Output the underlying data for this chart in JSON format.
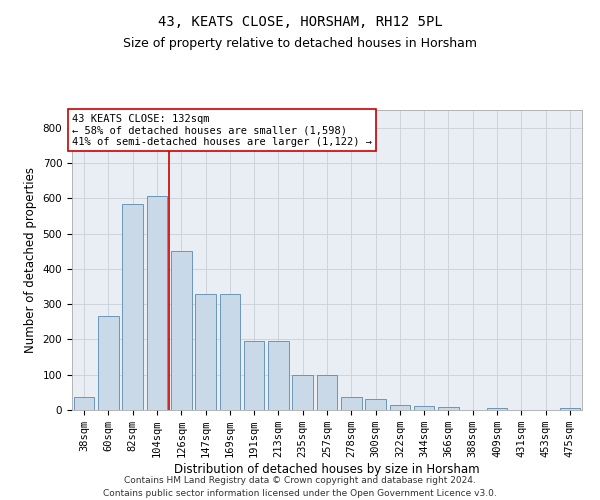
{
  "title": "43, KEATS CLOSE, HORSHAM, RH12 5PL",
  "subtitle": "Size of property relative to detached houses in Horsham",
  "xlabel": "Distribution of detached houses by size in Horsham",
  "ylabel": "Number of detached properties",
  "categories": [
    "38sqm",
    "60sqm",
    "82sqm",
    "104sqm",
    "126sqm",
    "147sqm",
    "169sqm",
    "191sqm",
    "213sqm",
    "235sqm",
    "257sqm",
    "278sqm",
    "300sqm",
    "322sqm",
    "344sqm",
    "366sqm",
    "388sqm",
    "409sqm",
    "431sqm",
    "453sqm",
    "475sqm"
  ],
  "values": [
    38,
    265,
    585,
    605,
    450,
    328,
    328,
    195,
    195,
    100,
    100,
    38,
    30,
    15,
    10,
    8,
    0,
    5,
    0,
    0,
    5
  ],
  "bar_color": "#c9d9e8",
  "bar_edge_color": "#5a8ab0",
  "vline_x_idx": 3.5,
  "vline_color": "#cc0000",
  "annotation_text": "43 KEATS CLOSE: 132sqm\n← 58% of detached houses are smaller (1,598)\n41% of semi-detached houses are larger (1,122) →",
  "annotation_box_color": "#ffffff",
  "annotation_box_edge_color": "#cc0000",
  "ylim": [
    0,
    850
  ],
  "yticks": [
    0,
    100,
    200,
    300,
    400,
    500,
    600,
    700,
    800
  ],
  "footer_line1": "Contains HM Land Registry data © Crown copyright and database right 2024.",
  "footer_line2": "Contains public sector information licensed under the Open Government Licence v3.0.",
  "background_color": "#ffffff",
  "plot_bg_color": "#e8eef4",
  "grid_color": "#c8d0d8",
  "title_fontsize": 10,
  "subtitle_fontsize": 9,
  "axis_label_fontsize": 8.5,
  "tick_fontsize": 7.5,
  "footer_fontsize": 6.5
}
